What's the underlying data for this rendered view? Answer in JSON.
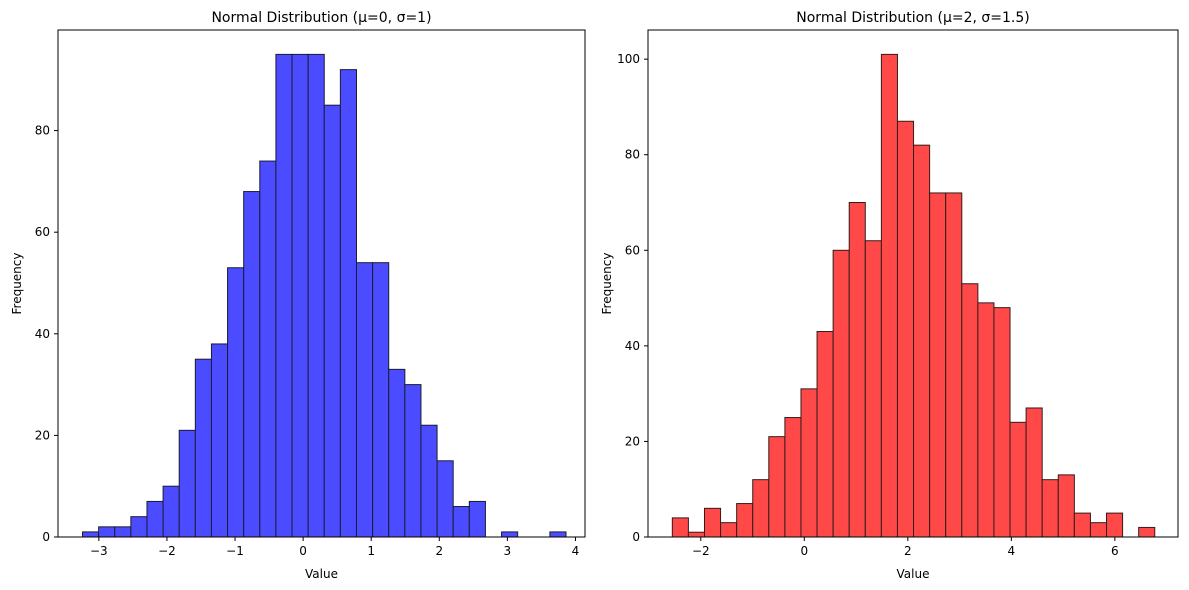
{
  "chart_data": [
    {
      "type": "bar",
      "title": "Normal Distribution (μ=0, σ=1)",
      "xlabel": "Value",
      "ylabel": "Frequency",
      "color": "#4b4bff",
      "edge_color": "#1c1c33",
      "bin_start": -3.24,
      "bin_width": 0.2367,
      "values": [
        1,
        2,
        2,
        4,
        7,
        10,
        21,
        35,
        38,
        53,
        68,
        74,
        95,
        95,
        95,
        85,
        92,
        54,
        54,
        33,
        30,
        22,
        15,
        6,
        7,
        0,
        1,
        0,
        0,
        1
      ],
      "xlim": [
        -3.6,
        4.14
      ],
      "ylim": [
        0,
        99.8
      ],
      "xticks": [
        -3,
        -2,
        -1,
        0,
        1,
        2,
        3,
        4
      ],
      "xtick_labels": [
        "−3",
        "−2",
        "−1",
        "0",
        "1",
        "2",
        "3",
        "4"
      ],
      "yticks": [
        0,
        20,
        40,
        60,
        80
      ],
      "ytick_labels": [
        "0",
        "20",
        "40",
        "60",
        "80"
      ],
      "grid": false
    },
    {
      "type": "bar",
      "title": "Normal Distribution (μ=2, σ=1.5)",
      "xlabel": "Value",
      "ylabel": "Frequency",
      "color": "#ff4848",
      "edge_color": "#331c1c",
      "bin_start": -2.55,
      "bin_width": 0.3107,
      "values": [
        4,
        1,
        6,
        3,
        7,
        12,
        21,
        25,
        31,
        43,
        60,
        70,
        62,
        101,
        87,
        82,
        72,
        72,
        53,
        49,
        48,
        24,
        27,
        12,
        13,
        5,
        3,
        5,
        0,
        2
      ],
      "xlim": [
        -3.02,
        7.22
      ],
      "ylim": [
        0,
        106.1
      ],
      "xticks": [
        -2,
        0,
        2,
        4,
        6
      ],
      "xtick_labels": [
        "−2",
        "0",
        "2",
        "4",
        "6"
      ],
      "yticks": [
        0,
        20,
        40,
        60,
        80,
        100
      ],
      "ytick_labels": [
        "0",
        "20",
        "40",
        "60",
        "80",
        "100"
      ],
      "grid": false
    }
  ]
}
